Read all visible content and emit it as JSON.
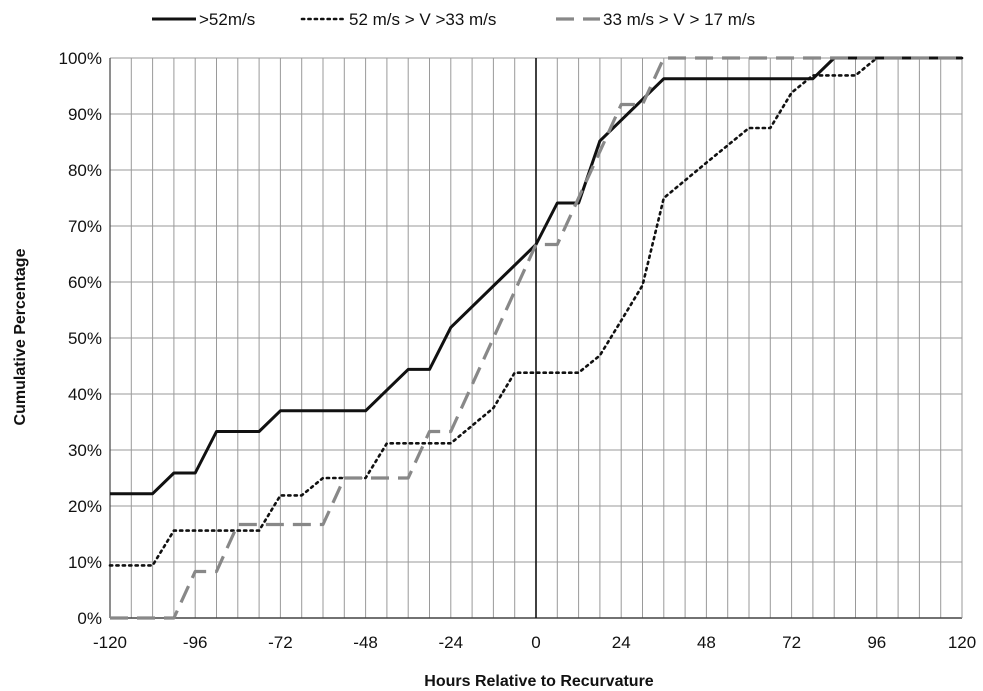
{
  "chart_data": {
    "type": "line",
    "title": "",
    "xlabel": "Hours Relative to Recurvature",
    "ylabel": "Cumulative Percentage",
    "xlim": [
      -120,
      120
    ],
    "ylim": [
      0,
      100
    ],
    "x_tick_labels": [
      "-120",
      "-96",
      "-72",
      "-48",
      "-24",
      "0",
      "24",
      "48",
      "72",
      "96",
      "120"
    ],
    "y_tick_labels": [
      "0%",
      "10%",
      "20%",
      "30%",
      "40%",
      "50%",
      "60%",
      "70%",
      "80%",
      "90%",
      "100%"
    ],
    "grid": true,
    "legend_position": "top",
    "zero_line": 0,
    "series": [
      {
        "name": ">52m/s",
        "style": "solid",
        "color": "#111111",
        "points": [
          [
            -120,
            22.2
          ],
          [
            -108,
            22.2
          ],
          [
            -102,
            25.9
          ],
          [
            -96,
            25.9
          ],
          [
            -90,
            33.3
          ],
          [
            -78,
            33.3
          ],
          [
            -72,
            37
          ],
          [
            -48,
            37
          ],
          [
            -36,
            44.4
          ],
          [
            -30,
            44.4
          ],
          [
            -24,
            51.9
          ],
          [
            0,
            66.7
          ],
          [
            6,
            74.1
          ],
          [
            12,
            74.1
          ],
          [
            18,
            85.2
          ],
          [
            24,
            88.9
          ],
          [
            30,
            92.6
          ],
          [
            36,
            96.3
          ],
          [
            78,
            96.3
          ],
          [
            84,
            100
          ],
          [
            120,
            100
          ]
        ]
      },
      {
        "name": "52 m/s > V >33 m/s",
        "style": "dotted",
        "color": "#111111",
        "points": [
          [
            -120,
            9.4
          ],
          [
            -108,
            9.4
          ],
          [
            -102,
            15.6
          ],
          [
            -78,
            15.6
          ],
          [
            -72,
            21.9
          ],
          [
            -66,
            21.9
          ],
          [
            -60,
            25
          ],
          [
            -48,
            25
          ],
          [
            -42,
            31.2
          ],
          [
            -24,
            31.2
          ],
          [
            -12,
            37.5
          ],
          [
            -6,
            43.8
          ],
          [
            12,
            43.8
          ],
          [
            18,
            46.9
          ],
          [
            24,
            53.1
          ],
          [
            30,
            59.4
          ],
          [
            36,
            75
          ],
          [
            48,
            81.3
          ],
          [
            60,
            87.5
          ],
          [
            66,
            87.5
          ],
          [
            72,
            93.8
          ],
          [
            78,
            96.9
          ],
          [
            90,
            96.9
          ],
          [
            96,
            100
          ],
          [
            120,
            100
          ]
        ]
      },
      {
        "name": "33 m/s > V > 17 m/s",
        "style": "dashed",
        "color": "#888888",
        "points": [
          [
            -120,
            0
          ],
          [
            -102,
            0
          ],
          [
            -96,
            8.3
          ],
          [
            -90,
            8.3
          ],
          [
            -84,
            16.7
          ],
          [
            -60,
            16.7
          ],
          [
            -54,
            25
          ],
          [
            -36,
            25
          ],
          [
            -30,
            33.3
          ],
          [
            -24,
            33.3
          ],
          [
            0,
            66.7
          ],
          [
            6,
            66.7
          ],
          [
            18,
            83.3
          ],
          [
            24,
            91.7
          ],
          [
            30,
            91.7
          ],
          [
            36,
            100
          ],
          [
            120,
            100
          ]
        ]
      }
    ]
  }
}
